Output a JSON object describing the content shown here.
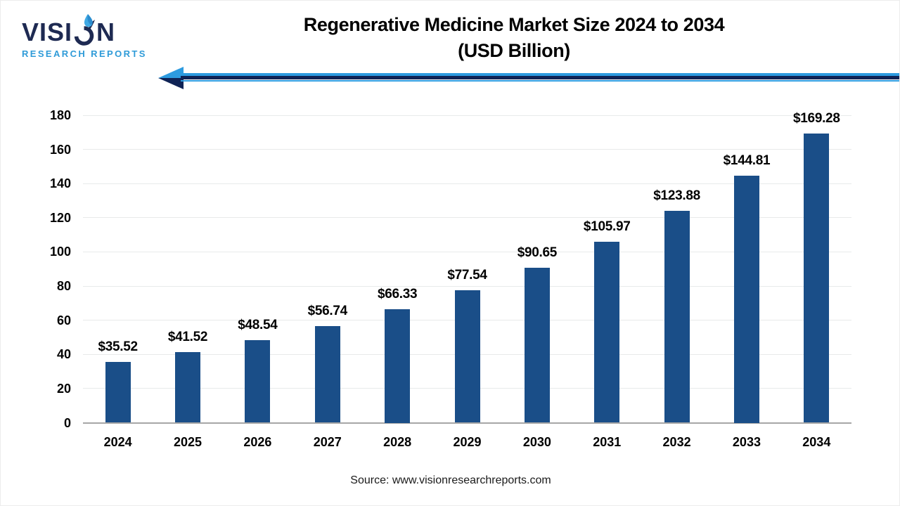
{
  "logo": {
    "word_prefix": "VISI",
    "word_suffix": "N",
    "subtitle": "RESEARCH REPORTS"
  },
  "title": {
    "line1": "Regenerative Medicine Market Size 2024 to 2034",
    "line2": "(USD Billion)"
  },
  "source": "Source: www.visionresearchreports.com",
  "colors": {
    "bar": "#1a4e88",
    "arrow_light": "#2d9be0",
    "arrow_dark": "#0f2355",
    "logo_navy": "#1e2a52",
    "logo_blue": "#3fa9e4",
    "gridline": "#e8eaea",
    "axis_line": "#a6a6a6",
    "text": "#000000"
  },
  "chart_data": {
    "type": "bar",
    "title": "Regenerative Medicine Market Size 2024 to 2034 (USD Billion)",
    "categories": [
      "2024",
      "2025",
      "2026",
      "2027",
      "2028",
      "2029",
      "2030",
      "2031",
      "2032",
      "2033",
      "2034"
    ],
    "values": [
      35.52,
      41.52,
      48.54,
      56.74,
      66.33,
      77.54,
      90.65,
      105.97,
      123.88,
      144.81,
      169.28
    ],
    "value_labels": [
      "$35.52",
      "$41.52",
      "$48.54",
      "$56.74",
      "$66.33",
      "$77.54",
      "$90.65",
      "$105.97",
      "$123.88",
      "$144.81",
      "$169.28"
    ],
    "xlabel": "",
    "ylabel": "",
    "ylim": [
      0,
      180
    ],
    "yticks": [
      0,
      20,
      40,
      60,
      80,
      100,
      120,
      140,
      160,
      180
    ],
    "grid": true,
    "legend": false,
    "bar_color": "#1a4e88"
  }
}
